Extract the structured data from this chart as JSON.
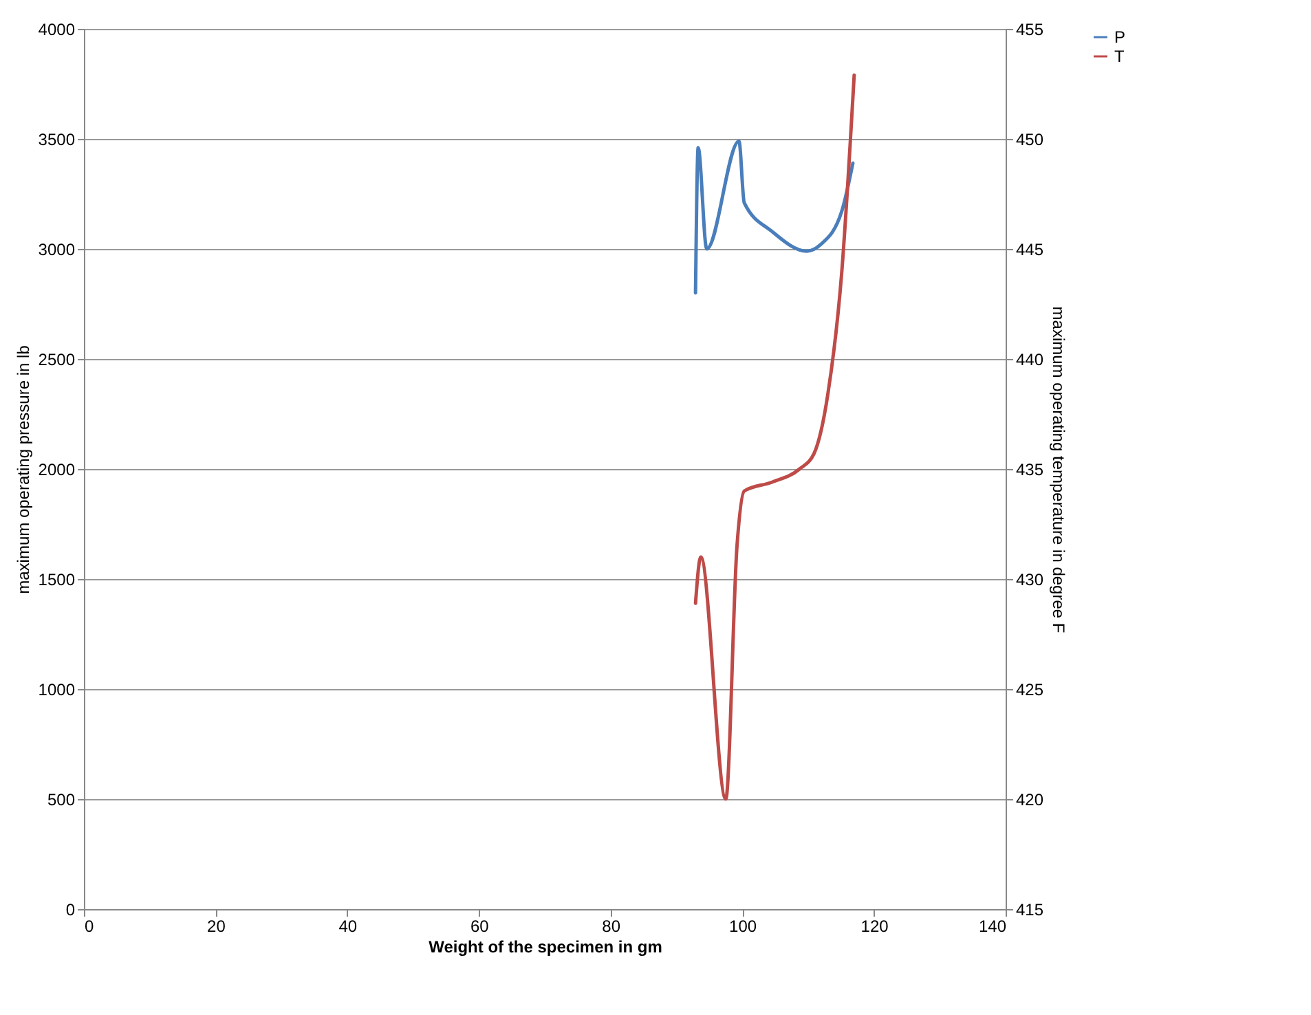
{
  "chart_data": {
    "type": "line",
    "xlabel": "Weight of the specimen in gm",
    "ylabel": "maximum operating pressure in lb",
    "y2label": "maximum operating temperature in degree F",
    "xlim": [
      0,
      140
    ],
    "xticks": [
      0,
      20,
      40,
      60,
      80,
      100,
      120,
      140
    ],
    "ylim": [
      0,
      4000
    ],
    "yticks": [
      0,
      500,
      1000,
      1500,
      2000,
      2500,
      3000,
      3500,
      4000
    ],
    "y2lim": [
      415,
      455
    ],
    "y2ticks": [
      415,
      420,
      425,
      430,
      435,
      440,
      445,
      450,
      455
    ],
    "grid": "y",
    "legend": "right",
    "line_style": "solid",
    "marker": "none",
    "series": [
      {
        "name": "P",
        "color": "#4a7ebb",
        "x": [
          92.9,
          93.3,
          94.6,
          99.5,
          100.3,
          104.5,
          109.8,
          111.9,
          115.1,
          116.8
        ],
        "values": [
          2800,
          3460,
          3000,
          3490,
          3210,
          3080,
          2990,
          3020,
          3170,
          3390
        ]
      },
      {
        "name": "T",
        "color": "#be4b48",
        "axis": "y2",
        "x": [
          92.9,
          93.7,
          97.5,
          99.2,
          100.3,
          104.5,
          108.7,
          110.9,
          113.0,
          115.1,
          117.0
        ],
        "values": [
          428.9,
          431.0,
          420.0,
          431.5,
          434.0,
          434.4,
          435.0,
          435.7,
          438.4,
          443.9,
          452.9
        ]
      }
    ]
  }
}
